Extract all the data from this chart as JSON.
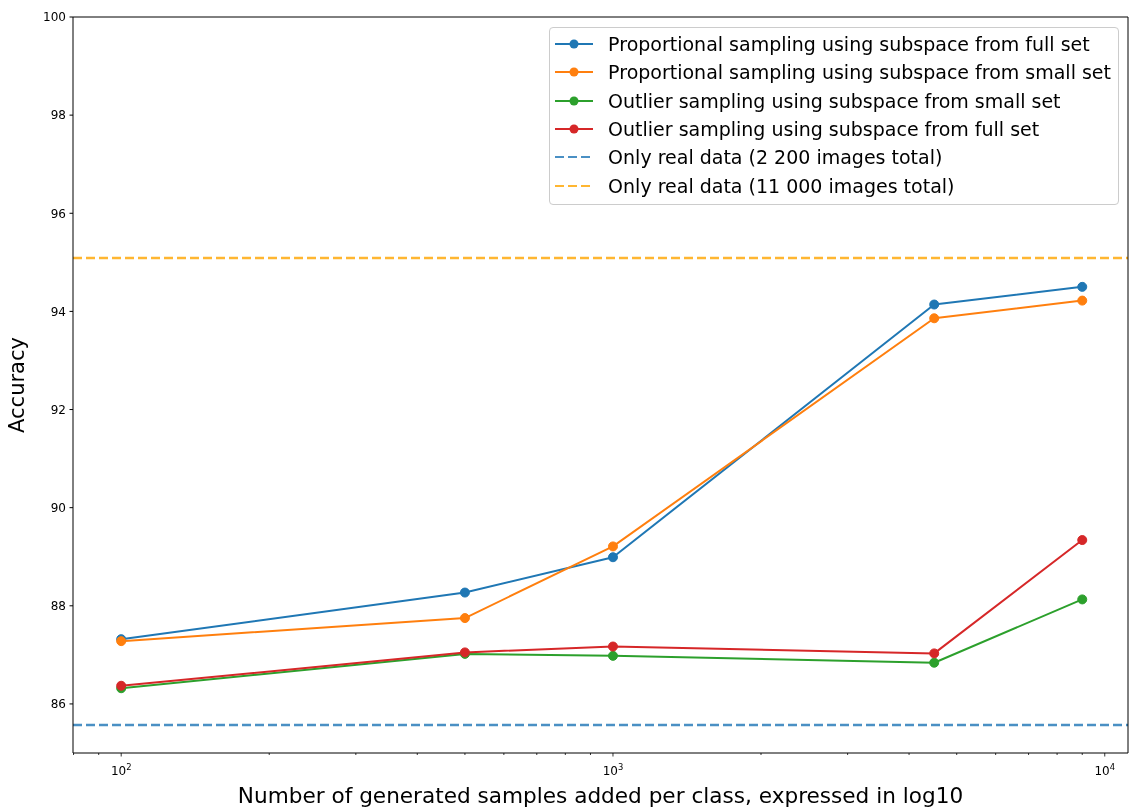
{
  "chart_data": {
    "type": "line",
    "xlabel": "Number of generated samples added per class, expressed in log10",
    "ylabel": "Accuracy",
    "x": [
      100,
      500,
      1000,
      4500,
      9000
    ],
    "series": [
      {
        "name": "Proportional sampling using subspace from full set",
        "color": "#1f77b4",
        "values": [
          87.32,
          88.27,
          88.99,
          94.14,
          94.5
        ]
      },
      {
        "name": "Proportional sampling using subspace from small set",
        "color": "#ff7f0e",
        "values": [
          87.28,
          87.75,
          89.21,
          93.86,
          94.22
        ]
      },
      {
        "name": "Outlier sampling using subspace from small set",
        "color": "#2ca02c",
        "values": [
          86.32,
          87.02,
          86.98,
          86.84,
          88.13
        ]
      },
      {
        "name": "Outlier sampling using subspace from full set",
        "color": "#d62728",
        "values": [
          86.37,
          87.05,
          87.17,
          87.03,
          89.34
        ]
      }
    ],
    "log": "x",
    "xlim": [
      79.8,
      11150
    ],
    "ylim": [
      85,
      100
    ],
    "xticks": [
      {
        "value": 80,
        "label": null
      },
      {
        "value": 90,
        "label": null
      },
      {
        "value": 100,
        "label": "10$^{2}$"
      },
      {
        "value": 200,
        "label": null
      },
      {
        "value": 300,
        "label": null
      },
      {
        "value": 400,
        "label": null
      },
      {
        "value": 500,
        "label": null
      },
      {
        "value": 600,
        "label": null
      },
      {
        "value": 700,
        "label": null
      },
      {
        "value": 800,
        "label": null
      },
      {
        "value": 900,
        "label": null
      },
      {
        "value": 1000,
        "label": "10$^{3}$"
      },
      {
        "value": 2000,
        "label": null
      },
      {
        "value": 3000,
        "label": null
      },
      {
        "value": 4000,
        "label": null
      },
      {
        "value": 5000,
        "label": null
      },
      {
        "value": 6000,
        "label": null
      },
      {
        "value": 7000,
        "label": null
      },
      {
        "value": 8000,
        "label": null
      },
      {
        "value": 9000,
        "label": null
      },
      {
        "value": 10000,
        "label": "10$^{4}$"
      }
    ],
    "yticks": [
      86,
      88,
      90,
      92,
      94,
      96,
      98,
      100
    ],
    "legend": "top right",
    "marker": "circle",
    "line_style": "solid",
    "ref_lines": [
      {
        "axis": "y",
        "value": 85.57,
        "label": "Only real data (2 200 images total)",
        "color": "#4a90c4",
        "line_style": "dashed"
      },
      {
        "axis": "y",
        "value": 95.09,
        "label": "Only real data (11 000 images total)",
        "color": "#ffb631",
        "line_style": "dashed"
      }
    ]
  }
}
